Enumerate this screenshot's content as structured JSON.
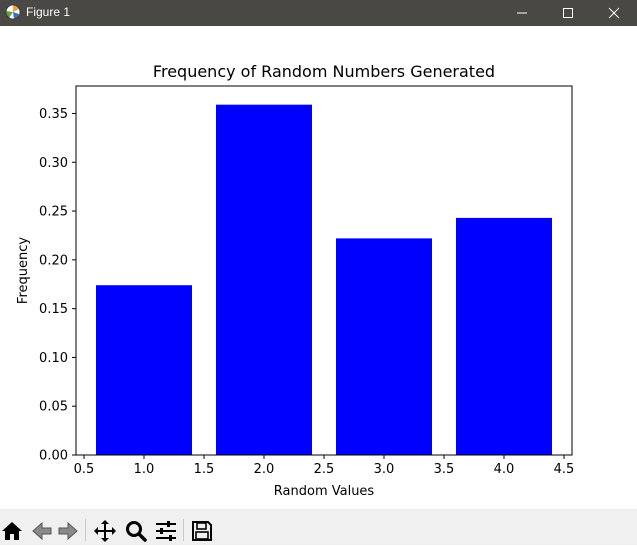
{
  "window": {
    "title": "Figure 1"
  },
  "toolbar": {
    "buttons": [
      {
        "icon": "home-icon"
      },
      {
        "icon": "back-arrow-icon"
      },
      {
        "icon": "forward-arrow-icon"
      },
      {
        "icon": "pan-move-icon"
      },
      {
        "icon": "zoom-magnifier-icon"
      },
      {
        "icon": "configure-subplots-icon"
      },
      {
        "icon": "save-floppy-icon"
      }
    ]
  },
  "colors": {
    "bar": "#0000ff",
    "titlebar": "#4a4845",
    "toolbar": "#f0f0f0"
  },
  "chart_data": {
    "type": "bar",
    "title": "Frequency of Random Numbers Generated",
    "xlabel": "Random Values",
    "ylabel": "Frequency",
    "x": [
      1,
      2,
      3,
      4
    ],
    "values": [
      0.174,
      0.359,
      0.222,
      0.243
    ],
    "bar_width": 0.8,
    "xlim": [
      0.5,
      4.5
    ],
    "ylim": [
      0,
      0.36
    ],
    "xticks": [
      0.5,
      1.0,
      1.5,
      2.0,
      2.5,
      3.0,
      3.5,
      4.0,
      4.5
    ],
    "xtick_labels": [
      "0.5",
      "1.0",
      "1.5",
      "2.0",
      "2.5",
      "3.0",
      "3.5",
      "4.0",
      "4.5"
    ],
    "yticks": [
      0,
      0.05,
      0.1,
      0.15,
      0.2,
      0.25,
      0.3,
      0.35
    ],
    "ytick_labels": [
      "0.00",
      "0.05",
      "0.10",
      "0.15",
      "0.20",
      "0.25",
      "0.30",
      "0.35"
    ],
    "grid": false,
    "color": "#0000ff"
  }
}
